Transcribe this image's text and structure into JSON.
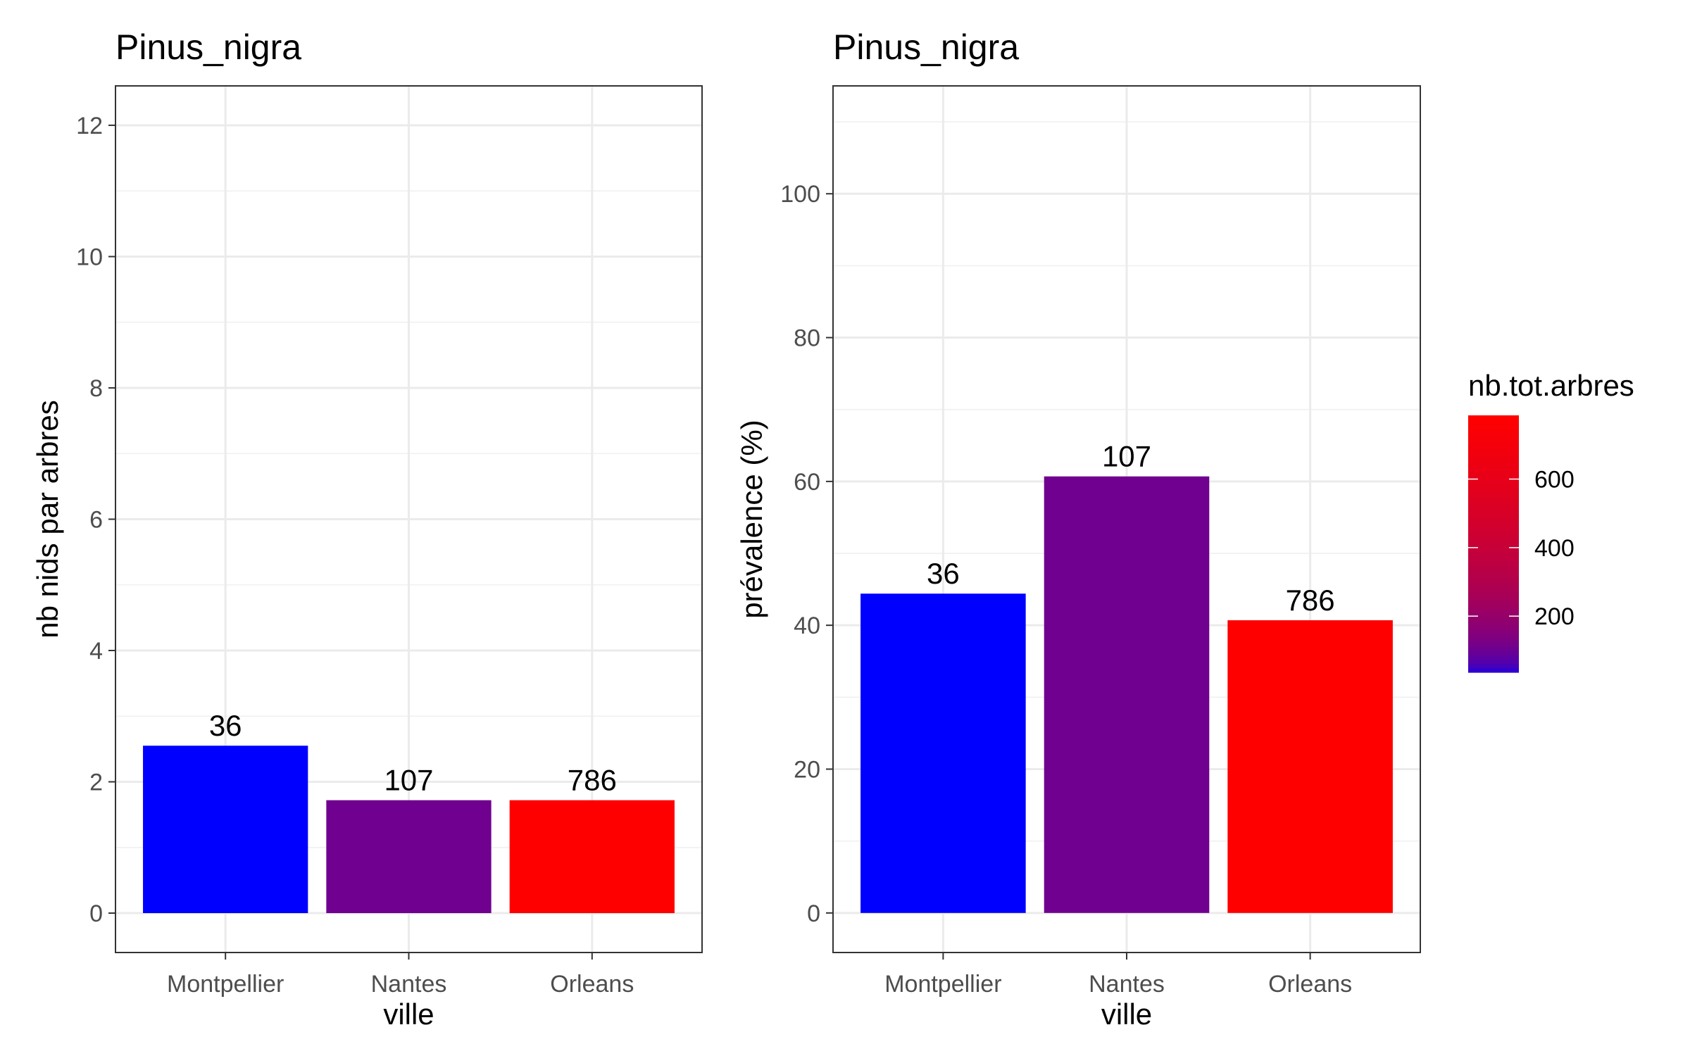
{
  "chart_data": [
    {
      "type": "bar",
      "title": "Pinus_nigra",
      "xlabel": "ville",
      "ylabel": "nb nids par arbres",
      "categories": [
        "Montpellier",
        "Nantes",
        "Orleans"
      ],
      "values": [
        2.55,
        1.72,
        1.72
      ],
      "bar_labels": [
        "36",
        "107",
        "786"
      ],
      "fill_values": [
        36,
        107,
        786
      ],
      "ylim": [
        -0.6,
        12.6
      ],
      "yticks": [
        0,
        2,
        4,
        6,
        8,
        10,
        12
      ],
      "ytick_labels": [
        "0",
        "2",
        "4",
        "6",
        "8",
        "10",
        "12"
      ],
      "grid": true
    },
    {
      "type": "bar",
      "title": "Pinus_nigra",
      "xlabel": "ville",
      "ylabel": "prévalence (%)",
      "categories": [
        "Montpellier",
        "Nantes",
        "Orleans"
      ],
      "values": [
        44.4,
        60.7,
        40.7
      ],
      "bar_labels": [
        "36",
        "107",
        "786"
      ],
      "fill_values": [
        36,
        107,
        786
      ],
      "ylim": [
        -5.5,
        115
      ],
      "yticks": [
        0,
        20,
        40,
        60,
        80,
        100
      ],
      "ytick_labels": [
        "0",
        "20",
        "40",
        "60",
        "80",
        "100"
      ],
      "grid": true
    }
  ],
  "legend": {
    "title": "nb.tot.arbres",
    "range": [
      36,
      786
    ],
    "breaks": [
      200,
      400,
      600
    ],
    "break_labels": [
      "200",
      "400",
      "600"
    ],
    "low_color": "#0000ff",
    "high_color": "#ff0000",
    "placement": "right"
  }
}
